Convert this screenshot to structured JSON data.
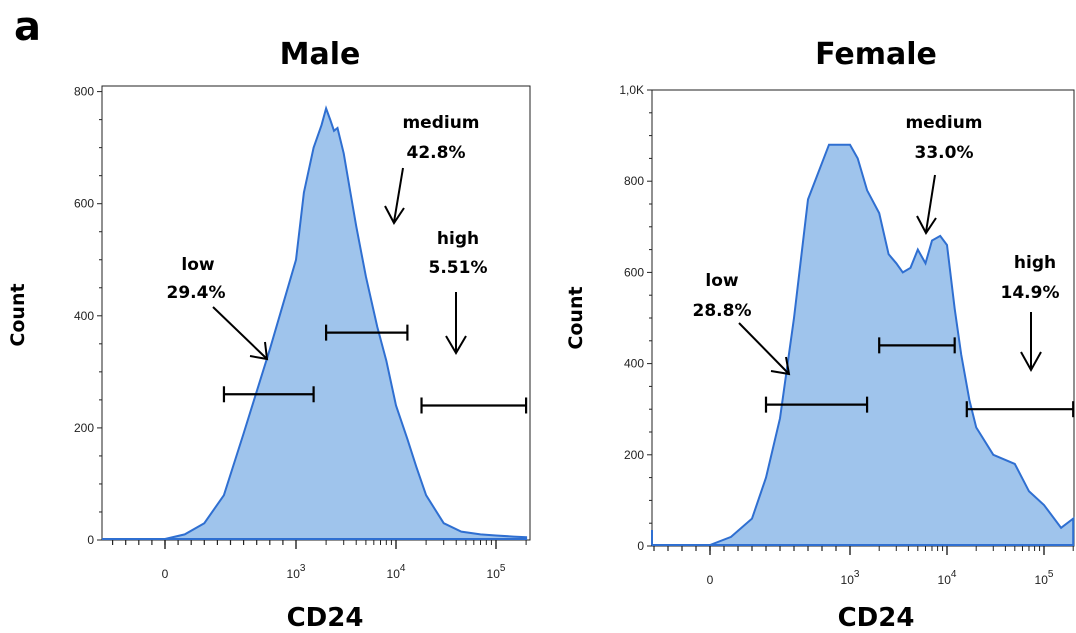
{
  "panel_label": "a",
  "chart_data": [
    {
      "type": "area",
      "title": "Male",
      "xlabel": "CD24",
      "ylabel": "Count",
      "x_scale": "biexponential",
      "x_tick_labels": [
        "0",
        "10^3",
        "10^4",
        "10^5"
      ],
      "x_ticks": [
        0,
        1000,
        10000,
        100000
      ],
      "y_ticks": [
        0,
        200,
        400,
        600,
        800
      ],
      "ylim": [
        0,
        810
      ],
      "color": "#2f6fd1",
      "fill": "#9fc4ec",
      "series": [
        {
          "x": [
            -600,
            -200,
            0,
            150,
            300,
            450,
            600,
            800,
            1000,
            1200,
            1500,
            1800,
            2000,
            2200,
            2400,
            2600,
            3000,
            3500,
            4000,
            5000,
            6500,
            8000,
            10000,
            13000,
            16000,
            20000,
            30000,
            45000,
            70000,
            100000,
            150000,
            200000
          ],
          "y": [
            0,
            0,
            0,
            10,
            30,
            80,
            190,
            340,
            500,
            620,
            700,
            740,
            770,
            750,
            730,
            735,
            690,
            620,
            560,
            470,
            380,
            320,
            240,
            180,
            130,
            80,
            30,
            15,
            10,
            8,
            6,
            5
          ]
        }
      ],
      "gates": [
        {
          "name": "low",
          "label": "low",
          "percent": "29.4%",
          "from": 450,
          "to": 1500,
          "level": 260
        },
        {
          "name": "medium",
          "label": "medium",
          "percent": "42.8%",
          "from": 2000,
          "to": 13000,
          "level": 370
        },
        {
          "name": "high",
          "label": "high",
          "percent": "5.51%",
          "from": 18000,
          "to": 200000,
          "level": 240
        }
      ]
    },
    {
      "type": "area",
      "title": "Female",
      "xlabel": "CD24",
      "ylabel": "Count",
      "x_scale": "biexponential",
      "x_tick_labels": [
        "0",
        "10^3",
        "10^4",
        "10^5"
      ],
      "x_ticks": [
        0,
        1000,
        10000,
        100000
      ],
      "y_ticks": [
        0,
        200,
        400,
        600,
        800,
        "1,0K"
      ],
      "ylim": [
        0,
        1000
      ],
      "color": "#2f6fd1",
      "fill": "#9fc4ec",
      "series": [
        {
          "x": [
            -1000,
            -600,
            -300,
            0,
            150,
            300,
            400,
            500,
            600,
            700,
            850,
            1000,
            1200,
            1500,
            2000,
            2500,
            3000,
            3500,
            4200,
            5000,
            6000,
            7000,
            8500,
            10000,
            12000,
            14000,
            17000,
            20000,
            30000,
            50000,
            70000,
            100000,
            150000,
            200000
          ],
          "y": [
            35,
            0,
            0,
            0,
            20,
            60,
            150,
            280,
            500,
            760,
            880,
            880,
            850,
            780,
            730,
            640,
            620,
            600,
            610,
            650,
            620,
            670,
            680,
            660,
            520,
            420,
            320,
            260,
            200,
            180,
            120,
            90,
            40,
            60
          ]
        }
      ],
      "gates": [
        {
          "name": "low",
          "label": "low",
          "percent": "28.8%",
          "from": 400,
          "to": 1500,
          "level": 310
        },
        {
          "name": "medium",
          "label": "medium",
          "percent": "33.0%",
          "from": 2000,
          "to": 12000,
          "level": 440
        },
        {
          "name": "high",
          "label": "high",
          "percent": "14.9%",
          "from": 16000,
          "to": 200000,
          "level": 300
        }
      ]
    }
  ]
}
